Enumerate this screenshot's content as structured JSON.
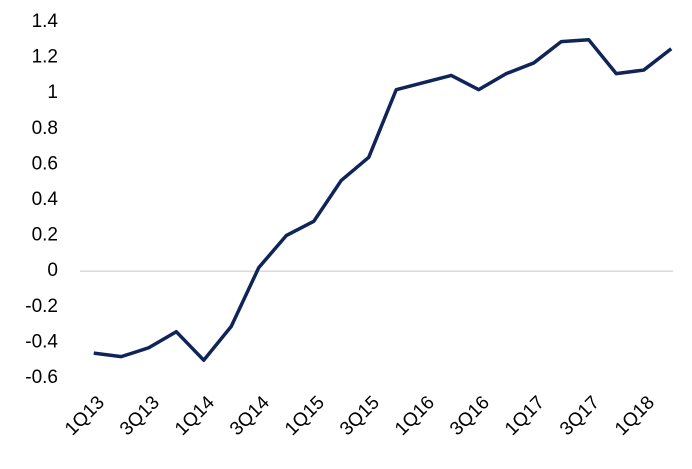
{
  "chart_data": {
    "type": "line",
    "categories": [
      "1Q13",
      null,
      "3Q13",
      null,
      "1Q14",
      null,
      "3Q14",
      null,
      "1Q15",
      null,
      "3Q15",
      null,
      "1Q16",
      null,
      "3Q16",
      null,
      "1Q17",
      null,
      "3Q17",
      null,
      "1Q18",
      null
    ],
    "values": [
      -0.46,
      -0.48,
      -0.43,
      -0.34,
      -0.5,
      -0.31,
      0.02,
      0.2,
      0.28,
      0.51,
      0.64,
      1.02,
      1.06,
      1.1,
      1.02,
      1.11,
      1.17,
      1.29,
      1.3,
      1.11,
      1.13,
      1.25
    ],
    "color": "#0f2557",
    "ylim": [
      -0.6,
      1.4
    ],
    "yticks": [
      -0.6,
      -0.4,
      -0.2,
      0,
      0.2,
      0.4,
      0.6,
      0.8,
      1,
      1.2,
      1.4
    ],
    "grid": false
  }
}
